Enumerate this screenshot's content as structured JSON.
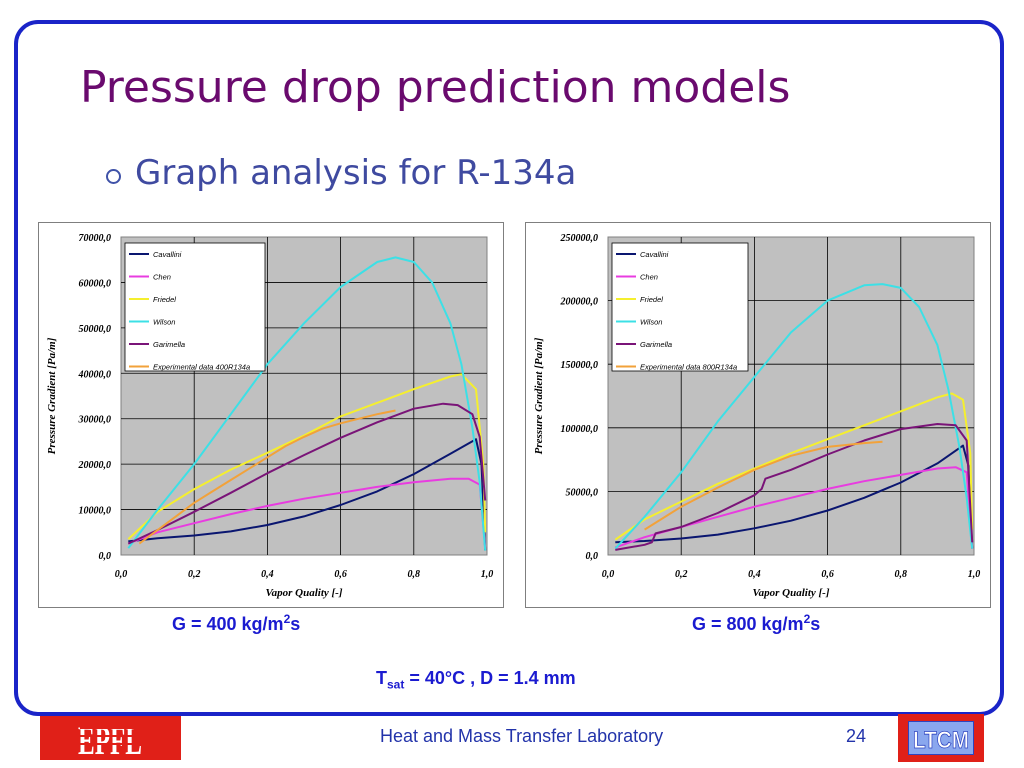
{
  "slide": {
    "title": "Pressure drop prediction models",
    "bullet": "Graph analysis for R-134a",
    "captions": {
      "left_prefix": "G = 400 kg/m",
      "left_suffix": "s",
      "right_prefix": "G = 800 kg/m",
      "right_suffix": "s",
      "superscript": "2"
    },
    "conditions": {
      "t": "T",
      "sub": "sat",
      "rest": " = 40°C , D = 1.4 mm"
    },
    "footer": {
      "lab": "Heat and Mass Transfer Laboratory",
      "page": "24",
      "logo_left": "EPFL",
      "logo_right": "LTCM"
    }
  },
  "colors": {
    "frame": "#1a24c8",
    "title": "#6a0a6e",
    "plot_background": "#c0c0c0",
    "Cavallini": "#0a1670",
    "Chen": "#e83ce0",
    "Friedel": "#f5ef2e",
    "Wilson": "#3ce0e6",
    "Garimella": "#7a1478",
    "Experimental": "#f2a23a"
  },
  "chart_data": [
    {
      "type": "line",
      "xlabel": "Vapor Quality [-]",
      "ylabel": "Pressure Gradient [Pa/m]",
      "xlim": [
        0.0,
        1.0
      ],
      "ylim": [
        0,
        70000
      ],
      "xticks": [
        "0,0",
        "0,2",
        "0,4",
        "0,6",
        "0,8",
        "1,0"
      ],
      "yticks": [
        "0,0",
        "10000,0",
        "20000,0",
        "30000,0",
        "40000,0",
        "50000,0",
        "60000,0",
        "70000,0"
      ],
      "grid": true,
      "legend": "top-left",
      "series": [
        {
          "name": "Cavallini",
          "x": [
            0.02,
            0.1,
            0.2,
            0.3,
            0.4,
            0.5,
            0.6,
            0.7,
            0.8,
            0.9,
            0.97,
            0.985,
            0.995
          ],
          "y": [
            3000,
            3700,
            4300,
            5200,
            6600,
            8500,
            11000,
            14000,
            17800,
            22300,
            25500,
            20000,
            1000
          ]
        },
        {
          "name": "Chen",
          "x": [
            0.02,
            0.1,
            0.2,
            0.3,
            0.4,
            0.5,
            0.6,
            0.7,
            0.8,
            0.9,
            0.95,
            0.98,
            0.995
          ],
          "y": [
            2500,
            5000,
            7000,
            9000,
            10800,
            12400,
            13700,
            15000,
            16000,
            16800,
            16800,
            15500,
            1500
          ]
        },
        {
          "name": "Friedel",
          "x": [
            0.02,
            0.1,
            0.2,
            0.3,
            0.4,
            0.5,
            0.6,
            0.7,
            0.8,
            0.9,
            0.93,
            0.97,
            0.99,
            0.995
          ],
          "y": [
            3500,
            9500,
            14500,
            18800,
            22500,
            26300,
            30500,
            33500,
            36500,
            39300,
            39800,
            36500,
            20000,
            5000
          ]
        },
        {
          "name": "Wilson",
          "x": [
            0.02,
            0.1,
            0.2,
            0.3,
            0.4,
            0.5,
            0.6,
            0.7,
            0.75,
            0.8,
            0.85,
            0.9,
            0.93,
            0.96,
            0.98,
            0.995
          ],
          "y": [
            1500,
            10000,
            20000,
            31000,
            42000,
            51000,
            59000,
            64500,
            65500,
            64500,
            60000,
            51000,
            42000,
            28000,
            16000,
            1000
          ]
        },
        {
          "name": "Garimella",
          "x": [
            0.02,
            0.1,
            0.2,
            0.3,
            0.4,
            0.5,
            0.6,
            0.7,
            0.8,
            0.88,
            0.92,
            0.96,
            0.98,
            0.995
          ],
          "y": [
            2500,
            5500,
            9500,
            13700,
            18000,
            22000,
            25800,
            29200,
            32200,
            33300,
            33000,
            31000,
            26000,
            12000
          ]
        },
        {
          "name": "Experimental data 400R134a",
          "x": [
            0.05,
            0.1,
            0.15,
            0.2,
            0.25,
            0.3,
            0.35,
            0.4,
            0.45,
            0.5,
            0.55,
            0.6,
            0.65,
            0.7,
            0.75
          ],
          "y": [
            2500,
            5500,
            8500,
            11500,
            14000,
            16500,
            19000,
            21500,
            24000,
            26000,
            27800,
            29000,
            30000,
            31000,
            31800
          ]
        }
      ]
    },
    {
      "type": "line",
      "xlabel": "Vapor Quality [-]",
      "ylabel": "Pressure Gradient [Pa/m]",
      "xlim": [
        0.0,
        1.0
      ],
      "ylim": [
        0,
        250000
      ],
      "xticks": [
        "0,0",
        "0,2",
        "0,4",
        "0,6",
        "0,8",
        "1,0"
      ],
      "yticks": [
        "0,0",
        "50000,0",
        "100000,0",
        "150000,0",
        "200000,0",
        "250000,0"
      ],
      "grid": true,
      "legend": "top-left",
      "series": [
        {
          "name": "Cavallini",
          "x": [
            0.02,
            0.1,
            0.2,
            0.3,
            0.4,
            0.5,
            0.6,
            0.7,
            0.8,
            0.9,
            0.97,
            0.985,
            0.995
          ],
          "y": [
            10000,
            11000,
            13000,
            16000,
            21000,
            27000,
            35000,
            45000,
            57000,
            72000,
            86000,
            70000,
            5000
          ]
        },
        {
          "name": "Chen",
          "x": [
            0.02,
            0.1,
            0.2,
            0.3,
            0.4,
            0.5,
            0.6,
            0.7,
            0.8,
            0.9,
            0.95,
            0.98,
            0.995
          ],
          "y": [
            6000,
            14000,
            22000,
            30000,
            38000,
            45000,
            52000,
            58000,
            63000,
            68000,
            69000,
            65000,
            5000
          ]
        },
        {
          "name": "Friedel",
          "x": [
            0.02,
            0.1,
            0.2,
            0.3,
            0.4,
            0.5,
            0.6,
            0.7,
            0.8,
            0.9,
            0.94,
            0.97,
            0.99,
            0.995
          ],
          "y": [
            12000,
            28000,
            42000,
            56000,
            68000,
            80000,
            91000,
            102000,
            113000,
            124000,
            127000,
            122000,
            80000,
            20000
          ]
        },
        {
          "name": "Wilson",
          "x": [
            0.02,
            0.1,
            0.2,
            0.3,
            0.4,
            0.5,
            0.6,
            0.7,
            0.75,
            0.8,
            0.85,
            0.9,
            0.93,
            0.96,
            0.98,
            0.995
          ],
          "y": [
            5000,
            30000,
            65000,
            105000,
            140000,
            175000,
            200000,
            212000,
            213000,
            210000,
            195000,
            165000,
            130000,
            85000,
            45000,
            5000
          ]
        },
        {
          "name": "Garimella",
          "x": [
            0.02,
            0.1,
            0.12,
            0.13,
            0.2,
            0.3,
            0.4,
            0.42,
            0.43,
            0.5,
            0.6,
            0.7,
            0.8,
            0.9,
            0.95,
            0.98,
            0.995
          ],
          "y": [
            4000,
            8000,
            10000,
            17000,
            22000,
            33000,
            47000,
            52000,
            60000,
            67000,
            79000,
            90000,
            99000,
            103000,
            102000,
            90000,
            10000
          ]
        },
        {
          "name": "Experimental data 800R134a",
          "x": [
            0.1,
            0.2,
            0.3,
            0.4,
            0.5,
            0.6,
            0.7,
            0.75
          ],
          "y": [
            20000,
            38000,
            53000,
            67000,
            78000,
            85000,
            88000,
            89000
          ]
        }
      ]
    }
  ]
}
